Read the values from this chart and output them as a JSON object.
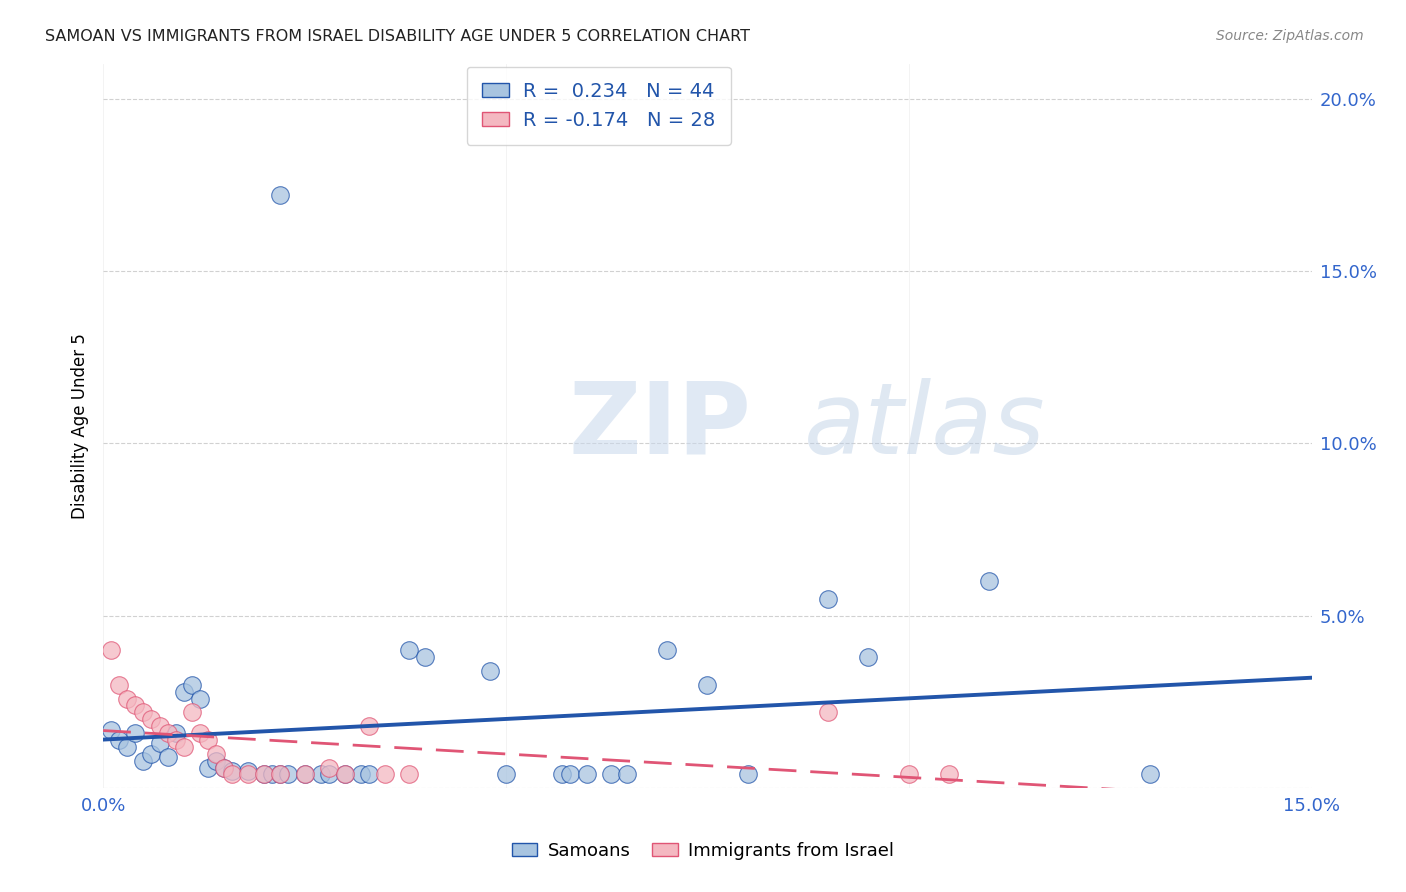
{
  "title": "SAMOAN VS IMMIGRANTS FROM ISRAEL DISABILITY AGE UNDER 5 CORRELATION CHART",
  "source": "Source: ZipAtlas.com",
  "ylabel": "Disability Age Under 5",
  "legend_label1": "Samoans",
  "legend_label2": "Immigrants from Israel",
  "R1": 0.234,
  "N1": 44,
  "R2": -0.174,
  "N2": 28,
  "watermark_ZIP": "ZIP",
  "watermark_atlas": "atlas",
  "blue_color": "#a8c4e0",
  "pink_color": "#f4b8c1",
  "line_blue": "#2255aa",
  "line_pink": "#e05575",
  "blue_scatter": [
    [
      0.001,
      0.017
    ],
    [
      0.002,
      0.014
    ],
    [
      0.003,
      0.012
    ],
    [
      0.004,
      0.016
    ],
    [
      0.005,
      0.008
    ],
    [
      0.006,
      0.01
    ],
    [
      0.007,
      0.013
    ],
    [
      0.008,
      0.009
    ],
    [
      0.009,
      0.016
    ],
    [
      0.01,
      0.028
    ],
    [
      0.011,
      0.03
    ],
    [
      0.012,
      0.026
    ],
    [
      0.013,
      0.006
    ],
    [
      0.014,
      0.008
    ],
    [
      0.015,
      0.006
    ],
    [
      0.016,
      0.005
    ],
    [
      0.018,
      0.005
    ],
    [
      0.02,
      0.004
    ],
    [
      0.021,
      0.004
    ],
    [
      0.022,
      0.004
    ],
    [
      0.023,
      0.004
    ],
    [
      0.025,
      0.004
    ],
    [
      0.027,
      0.004
    ],
    [
      0.028,
      0.004
    ],
    [
      0.03,
      0.004
    ],
    [
      0.032,
      0.004
    ],
    [
      0.033,
      0.004
    ],
    [
      0.022,
      0.172
    ],
    [
      0.038,
      0.04
    ],
    [
      0.04,
      0.038
    ],
    [
      0.048,
      0.034
    ],
    [
      0.05,
      0.004
    ],
    [
      0.057,
      0.004
    ],
    [
      0.058,
      0.004
    ],
    [
      0.06,
      0.004
    ],
    [
      0.063,
      0.004
    ],
    [
      0.065,
      0.004
    ],
    [
      0.07,
      0.04
    ],
    [
      0.075,
      0.03
    ],
    [
      0.08,
      0.004
    ],
    [
      0.09,
      0.055
    ],
    [
      0.095,
      0.038
    ],
    [
      0.11,
      0.06
    ],
    [
      0.13,
      0.004
    ]
  ],
  "pink_scatter": [
    [
      0.001,
      0.04
    ],
    [
      0.002,
      0.03
    ],
    [
      0.003,
      0.026
    ],
    [
      0.004,
      0.024
    ],
    [
      0.005,
      0.022
    ],
    [
      0.006,
      0.02
    ],
    [
      0.007,
      0.018
    ],
    [
      0.008,
      0.016
    ],
    [
      0.009,
      0.014
    ],
    [
      0.01,
      0.012
    ],
    [
      0.011,
      0.022
    ],
    [
      0.012,
      0.016
    ],
    [
      0.013,
      0.014
    ],
    [
      0.014,
      0.01
    ],
    [
      0.015,
      0.006
    ],
    [
      0.016,
      0.004
    ],
    [
      0.018,
      0.004
    ],
    [
      0.02,
      0.004
    ],
    [
      0.022,
      0.004
    ],
    [
      0.025,
      0.004
    ],
    [
      0.028,
      0.006
    ],
    [
      0.03,
      0.004
    ],
    [
      0.033,
      0.018
    ],
    [
      0.035,
      0.004
    ],
    [
      0.038,
      0.004
    ],
    [
      0.09,
      0.022
    ],
    [
      0.1,
      0.004
    ],
    [
      0.105,
      0.004
    ]
  ],
  "xlim": [
    0.0,
    0.15
  ],
  "ylim": [
    0.0,
    0.21
  ],
  "xticks": [
    0.0,
    0.05,
    0.1,
    0.15
  ],
  "xtick_labels": [
    "0.0%",
    "",
    "",
    "15.0%"
  ],
  "yticks": [
    0.0,
    0.05,
    0.1,
    0.15,
    0.2
  ],
  "ytick_labels": [
    "",
    "5.0%",
    "10.0%",
    "15.0%",
    "20.0%"
  ],
  "background_color": "#FFFFFF"
}
